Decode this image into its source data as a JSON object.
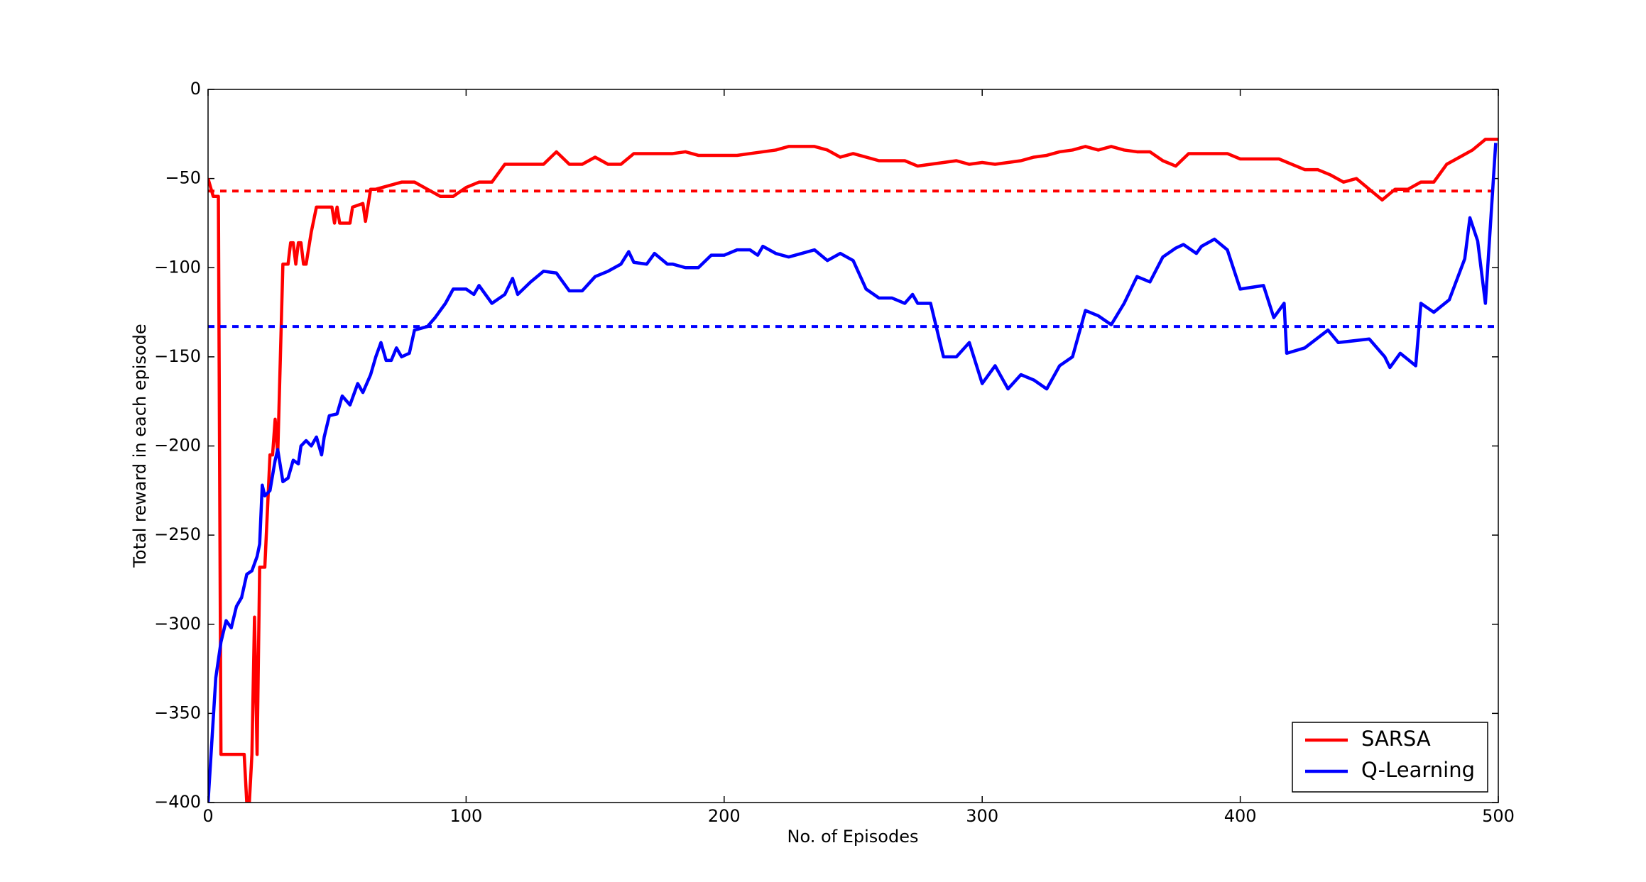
{
  "chart_data": {
    "type": "line",
    "xlabel": "No. of Episodes",
    "ylabel": "Total reward in each episode",
    "xlim": [
      0,
      500
    ],
    "ylim": [
      -400,
      0
    ],
    "xticks": [
      0,
      100,
      200,
      300,
      400,
      500
    ],
    "yticks": [
      {
        "value": -400,
        "label": "−400"
      },
      {
        "value": -350,
        "label": "−350"
      },
      {
        "value": -300,
        "label": "−300"
      },
      {
        "value": -250,
        "label": "−250"
      },
      {
        "value": -200,
        "label": "−200"
      },
      {
        "value": -150,
        "label": "−150"
      },
      {
        "value": -100,
        "label": "−100"
      },
      {
        "value": -50,
        "label": "−50"
      },
      0
    ],
    "legend": "lower right",
    "series": [
      {
        "name": "SARSA",
        "color": "#ff0000",
        "x": [
          0,
          2,
          4,
          5,
          10,
          14,
          15,
          16,
          17,
          18,
          19,
          20,
          22,
          24,
          25,
          26,
          27,
          29,
          31,
          32,
          33,
          34,
          35,
          36,
          37,
          38,
          40,
          42,
          48,
          49,
          50,
          51,
          55,
          56,
          60,
          61,
          63,
          65,
          70,
          75,
          80,
          85,
          90,
          95,
          100,
          105,
          110,
          115,
          120,
          130,
          135,
          140,
          145,
          150,
          155,
          160,
          165,
          175,
          180,
          185,
          190,
          200,
          205,
          210,
          220,
          225,
          235,
          240,
          245,
          250,
          255,
          260,
          270,
          275,
          280,
          285,
          290,
          295,
          300,
          305,
          310,
          315,
          320,
          325,
          330,
          335,
          340,
          345,
          350,
          355,
          360,
          365,
          370,
          375,
          380,
          385,
          390,
          395,
          400,
          405,
          410,
          415,
          420,
          425,
          430,
          435,
          440,
          445,
          450,
          455,
          460,
          465,
          470,
          475,
          480,
          485,
          490,
          495,
          500
        ],
        "values": [
          -50,
          -60,
          -60,
          -373,
          -373,
          -373,
          -400,
          -400,
          -373,
          -296,
          -373,
          -268,
          -268,
          -205,
          -205,
          -185,
          -205,
          -98,
          -98,
          -86,
          -86,
          -98,
          -86,
          -86,
          -98,
          -98,
          -80,
          -66,
          -66,
          -75,
          -66,
          -75,
          -75,
          -66,
          -64,
          -74,
          -56,
          -56,
          -54,
          -52,
          -52,
          -56,
          -60,
          -60,
          -55,
          -52,
          -52,
          -42,
          -42,
          -42,
          -35,
          -42,
          -42,
          -38,
          -42,
          -42,
          -36,
          -36,
          -36,
          -35,
          -37,
          -37,
          -37,
          -36,
          -34,
          -32,
          -32,
          -34,
          -38,
          -36,
          -38,
          -40,
          -40,
          -43,
          -42,
          -41,
          -40,
          -42,
          -41,
          -42,
          -41,
          -40,
          -38,
          -37,
          -35,
          -34,
          -32,
          -34,
          -32,
          -34,
          -35,
          -35,
          -40,
          -43,
          -36,
          -36,
          -36,
          -36,
          -39,
          -39,
          -39,
          -39,
          -42,
          -45,
          -45,
          -48,
          -52,
          -50,
          -56,
          -62,
          -56,
          -56,
          -52,
          -52,
          -42,
          -38,
          -34,
          -28,
          -28
        ],
        "mean": -57
      },
      {
        "name": "Q-Learning",
        "color": "#0000ff",
        "x": [
          0,
          3,
          5,
          7,
          9,
          11,
          13,
          15,
          17,
          19,
          20,
          21,
          22,
          24,
          26,
          27,
          29,
          31,
          33,
          35,
          36,
          38,
          40,
          42,
          44,
          45,
          47,
          50,
          52,
          55,
          58,
          60,
          63,
          65,
          67,
          69,
          71,
          73,
          75,
          78,
          80,
          85,
          88,
          92,
          95,
          100,
          103,
          105,
          110,
          115,
          118,
          120,
          125,
          130,
          135,
          140,
          145,
          150,
          155,
          160,
          163,
          165,
          170,
          173,
          178,
          180,
          185,
          190,
          195,
          200,
          205,
          210,
          213,
          215,
          220,
          225,
          230,
          235,
          240,
          245,
          250,
          255,
          260,
          265,
          270,
          273,
          275,
          280,
          285,
          290,
          295,
          300,
          305,
          310,
          315,
          320,
          325,
          330,
          335,
          340,
          345,
          350,
          355,
          360,
          365,
          370,
          375,
          378,
          383,
          385,
          390,
          395,
          400,
          409,
          413,
          417,
          418,
          425,
          434,
          438,
          450,
          456,
          458,
          462,
          468,
          470,
          475,
          481,
          487,
          489,
          492,
          495,
          499
        ],
        "values": [
          -400,
          -330,
          -310,
          -298,
          -302,
          -290,
          -285,
          -272,
          -270,
          -262,
          -255,
          -222,
          -228,
          -225,
          -208,
          -202,
          -220,
          -218,
          -208,
          -210,
          -200,
          -197,
          -200,
          -195,
          -205,
          -195,
          -183,
          -182,
          -172,
          -177,
          -165,
          -170,
          -160,
          -150,
          -142,
          -152,
          -152,
          -145,
          -150,
          -148,
          -135,
          -133,
          -128,
          -120,
          -112,
          -112,
          -115,
          -110,
          -120,
          -115,
          -106,
          -115,
          -108,
          -102,
          -103,
          -113,
          -113,
          -105,
          -102,
          -98,
          -91,
          -97,
          -98,
          -92,
          -98,
          -98,
          -100,
          -100,
          -93,
          -93,
          -90,
          -90,
          -93,
          -88,
          -92,
          -94,
          -92,
          -90,
          -96,
          -92,
          -96,
          -112,
          -117,
          -117,
          -120,
          -115,
          -120,
          -120,
          -150,
          -150,
          -142,
          -165,
          -155,
          -168,
          -160,
          -163,
          -168,
          -155,
          -150,
          -124,
          -127,
          -132,
          -120,
          -105,
          -108,
          -94,
          -89,
          -87,
          -92,
          -88,
          -84,
          -90,
          -112,
          -110,
          -128,
          -120,
          -148,
          -145,
          -135,
          -142,
          -140,
          -150,
          -156,
          -148,
          -155,
          -120,
          -125,
          -118,
          -95,
          -72,
          -85,
          -120,
          -30
        ],
        "mean": -133
      }
    ]
  }
}
